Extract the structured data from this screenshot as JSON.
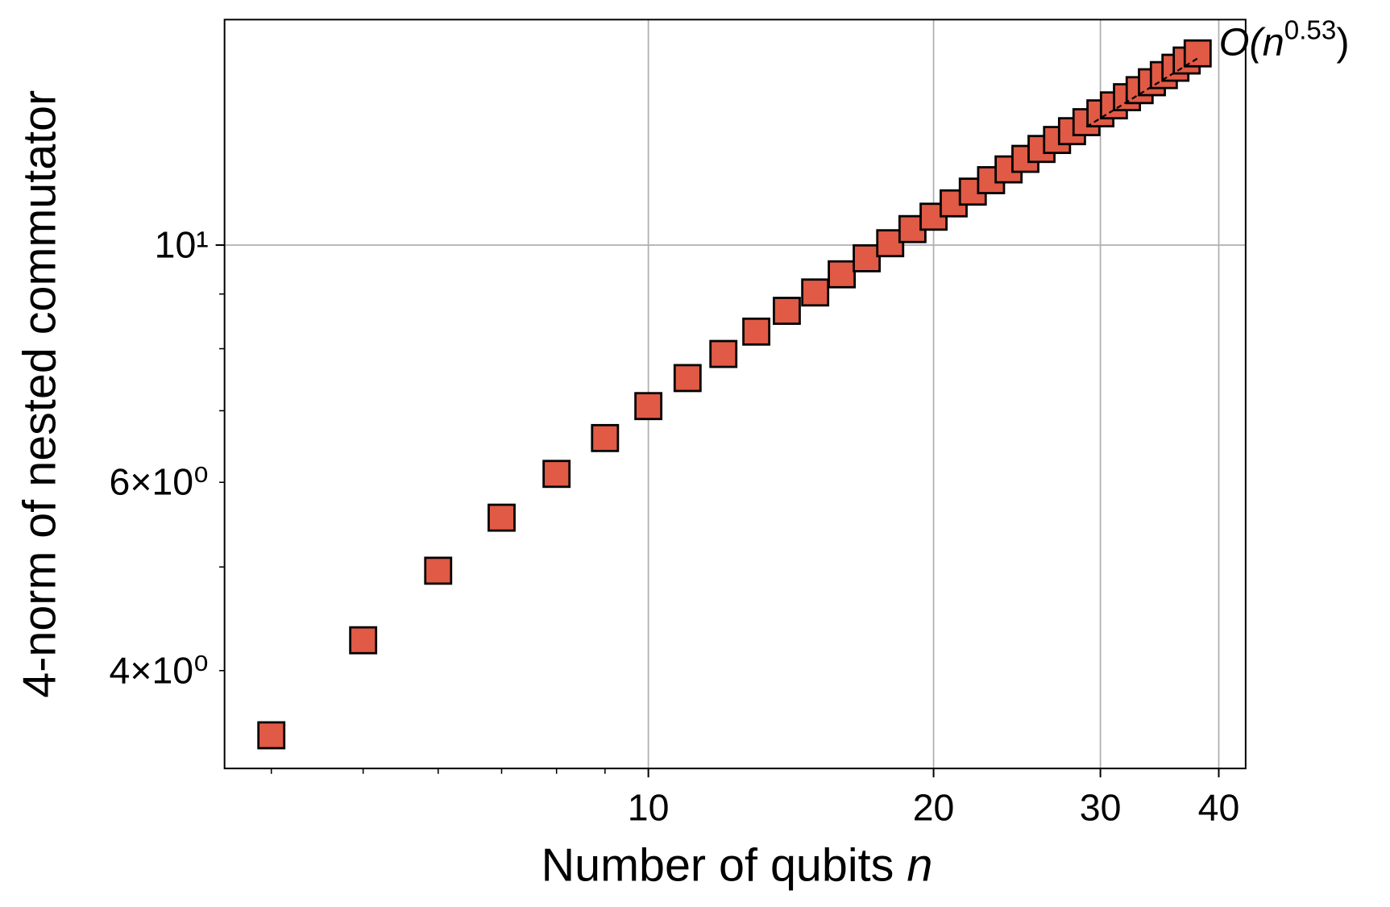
{
  "chart_data": {
    "type": "scatter",
    "xlabel": {
      "text": "Number of qubits ",
      "variable": "n"
    },
    "ylabel": "4-norm of nested commutator",
    "xscale": "log",
    "yscale": "log",
    "grid": true,
    "xlim": [
      3.57,
      42.7
    ],
    "ylim": [
      3.24,
      16.25
    ],
    "xticks": [
      10,
      20,
      30,
      40
    ],
    "xminorticks": [
      4,
      5,
      6,
      7,
      8,
      9
    ],
    "yticks": [
      {
        "value": 10,
        "label": "10¹"
      }
    ],
    "yminorticks": [
      {
        "value": 4,
        "label": "4×10⁰"
      },
      5,
      {
        "value": 6,
        "label": "6×10⁰"
      },
      7,
      8,
      9
    ],
    "series": [
      {
        "color": "#e05a45",
        "x": [
          4,
          5,
          6,
          7,
          8,
          9,
          10,
          11,
          12,
          13,
          14,
          15,
          16,
          17,
          18,
          19,
          20,
          21,
          22,
          23,
          24,
          25,
          26,
          27,
          28,
          29,
          30,
          31,
          32,
          33,
          34,
          35,
          36,
          37,
          38
        ],
        "values": [
          3.48,
          4.27,
          4.96,
          5.56,
          6.11,
          6.6,
          7.07,
          7.51,
          7.91,
          8.3,
          8.68,
          9.03,
          9.39,
          9.72,
          10.04,
          10.35,
          10.63,
          10.94,
          11.22,
          11.5,
          11.77,
          12.04,
          12.3,
          12.54,
          12.78,
          13.03,
          13.28,
          13.51,
          13.75,
          13.96,
          14.2,
          14.42,
          14.65,
          14.88,
          15.11
        ]
      }
    ],
    "fit_line": {
      "x": [
        29,
        38
      ],
      "values": [
        12.9,
        14.95
      ]
    },
    "annotation": {
      "text": "O(n",
      "superscript": "0.53",
      "suffix": ")"
    }
  }
}
